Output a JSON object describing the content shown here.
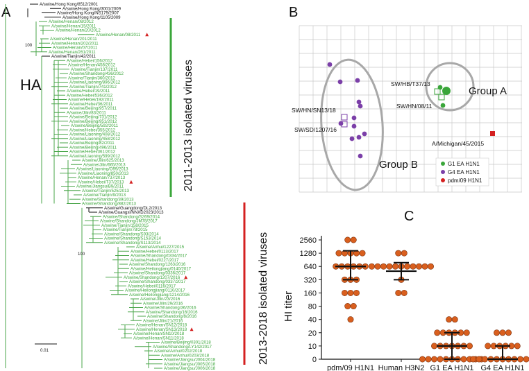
{
  "panels": {
    "a": "A",
    "b": "B",
    "c": "C"
  },
  "colors": {
    "green": "#3aa63a",
    "black": "#111111",
    "purple": "#7b3fa8",
    "red": "#d42020",
    "orange": "#d95f1e",
    "grid": "#c8c8c8",
    "ellipse": "#a8a8a8"
  },
  "tree": {
    "title": "HA",
    "groups": {
      "g2011": "2011-2013 isolated viruses",
      "g2013": "2013-2018 isolated viruses"
    },
    "bootstrap": [
      "100",
      "100"
    ],
    "scale": "0.01",
    "leaves": [
      {
        "name": "A/swine/Hong Kong/8512/2001",
        "c": "k"
      },
      {
        "name": "A/swine/Hong Kong/3001/2009",
        "c": "k"
      },
      {
        "name": "A/swine/Hong Kong/NS179/2007",
        "c": "k"
      },
      {
        "name": "A/swine/Hong Kong/1105/2009",
        "c": "k"
      },
      {
        "name": "A/swine/Henan/08/2012",
        "c": "g"
      },
      {
        "name": "A/swine/Henan/15/2011",
        "c": "g"
      },
      {
        "name": "A/swine/Henan/20/2012",
        "c": "g"
      },
      {
        "name": "A/swine/Henan/08/2011",
        "c": "g",
        "mark": true
      },
      {
        "name": "A/swine/Henan/201/2011",
        "c": "g"
      },
      {
        "name": "A/swine/Henan/202/2011",
        "c": "g"
      },
      {
        "name": "A/swine/Henan/07/2011",
        "c": "g"
      },
      {
        "name": "A/swine/Henan/261/2011",
        "c": "g"
      },
      {
        "name": "A/swine/Tianjin/42/2011",
        "c": "k"
      },
      {
        "name": "A/swine/Hebei/156/2012",
        "c": "g"
      },
      {
        "name": "A/swine/Henan/458/2012",
        "c": "g"
      },
      {
        "name": "A/swine/Tianjin/137/2011",
        "c": "g"
      },
      {
        "name": "A/swine/Shandong/436/2012",
        "c": "g"
      },
      {
        "name": "A/swine/Tianjin/360/2012",
        "c": "g"
      },
      {
        "name": "A/swine/Liaoning/896/2012",
        "c": "g"
      },
      {
        "name": "A/swine/Tianjin/741/2012",
        "c": "g"
      },
      {
        "name": "A/swine/Hebei/19/2011",
        "c": "g"
      },
      {
        "name": "A/swine/Hebei/536/2012",
        "c": "g"
      },
      {
        "name": "A/swine/Hebei/192/2011",
        "c": "g"
      },
      {
        "name": "A/swine/Hebei/36/2011",
        "c": "g"
      },
      {
        "name": "A/swine/Beijing/957/2011",
        "c": "g"
      },
      {
        "name": "A/swine/Jilin/83/2011",
        "c": "g"
      },
      {
        "name": "A/swine/Beijing/731/2012",
        "c": "g"
      },
      {
        "name": "A/swine/Beijing/951/2012",
        "c": "g"
      },
      {
        "name": "A/swine/Beijing/592/2011",
        "c": "g"
      },
      {
        "name": "A/swine/Hebei/355/2012",
        "c": "g"
      },
      {
        "name": "A/swine/Liaoning/408/2012",
        "c": "g"
      },
      {
        "name": "A/swine/Liaoning/458/2012",
        "c": "g"
      },
      {
        "name": "A/swine/Beijing/82/2011",
        "c": "g"
      },
      {
        "name": "A/swine/Beijing/496/2011",
        "c": "g"
      },
      {
        "name": "A/swine/Hebei/361/2012",
        "c": "g"
      },
      {
        "name": "A/swine/Liaoning/599/2012",
        "c": "g"
      },
      {
        "name": "A/swine/Jilin/625/2013",
        "c": "g"
      },
      {
        "name": "A/swine/Jilin/665/2013",
        "c": "g"
      },
      {
        "name": "A/swine/Liaoning/O99/2013",
        "c": "g"
      },
      {
        "name": "A/swine/Liaoning/850/2013",
        "c": "g"
      },
      {
        "name": "A/swine/Henan/737/2013",
        "c": "g"
      },
      {
        "name": "A/swine/Hebei/T37/2013",
        "c": "g",
        "mark": true
      },
      {
        "name": "A/swine/Jiangsu/B9/2011",
        "c": "g"
      },
      {
        "name": "A/swine/Tianjin/525/2013",
        "c": "g"
      },
      {
        "name": "A/swine/Tianjin/9/2013",
        "c": "g"
      },
      {
        "name": "A/swine/Shandong/39/2013",
        "c": "g"
      },
      {
        "name": "A/swine/Shandong/882/2013",
        "c": "g"
      },
      {
        "name": "A/swine/Guangdong/DL2/2013",
        "c": "k"
      },
      {
        "name": "A/swine/Guangxi/NNXD2023/2013",
        "c": "k"
      },
      {
        "name": "A/swine/Shandong/S269/2014",
        "c": "g"
      },
      {
        "name": "A/swine/Shandong/JM78/2017",
        "c": "g"
      },
      {
        "name": "A/swine/Tianjin/158/2015",
        "c": "g"
      },
      {
        "name": "A/swine/Tianjin/78/2015",
        "c": "g"
      },
      {
        "name": "A/swine/Shandong/S93/2014",
        "c": "g"
      },
      {
        "name": "A/swine/Shandong/S153/2014",
        "c": "g"
      },
      {
        "name": "A/swine/Shandong/S113/2014",
        "c": "g"
      },
      {
        "name": "A/swine/Anhui/1227/2015",
        "c": "g"
      },
      {
        "name": "A/swine/Hebei/0113/2017",
        "c": "g"
      },
      {
        "name": "A/swine/Shandong/0334/2017",
        "c": "g"
      },
      {
        "name": "A/swine/Hebei/0227/2017",
        "c": "g"
      },
      {
        "name": "A/swine/Shandong/1263/2016",
        "c": "g"
      },
      {
        "name": "A/swine/Heilongjiang/0140/2017",
        "c": "g"
      },
      {
        "name": "A/swine/Shandong/0336/2017",
        "c": "g"
      },
      {
        "name": "A/swine/Shandong/1207/2016",
        "c": "g",
        "mark": true
      },
      {
        "name": "A/swine/Shandong/0337/2017",
        "c": "g"
      },
      {
        "name": "A/swine/Hebei/0116/2017",
        "c": "g"
      },
      {
        "name": "A/swine/Heilongjiang/0110/2017",
        "c": "g"
      },
      {
        "name": "A/swine/Heilongjiang/1214/2016",
        "c": "g"
      },
      {
        "name": "A/swine/Jilin/23/2016",
        "c": "g"
      },
      {
        "name": "A/swine/Jilin/29/2016",
        "c": "g"
      },
      {
        "name": "A/swine/Shandong/36/2016",
        "c": "g"
      },
      {
        "name": "A/swine/Shandong/16/2016",
        "c": "g"
      },
      {
        "name": "A/swine/Shandong/8/2016",
        "c": "g"
      },
      {
        "name": "A/swine/Jilin/21/2016",
        "c": "g"
      },
      {
        "name": "A/swine/Henan/SN12/2018",
        "c": "g"
      },
      {
        "name": "A/swine/Henan/SN13/2018",
        "c": "g",
        "mark": true
      },
      {
        "name": "A/swine/Henan/SN10/2018",
        "c": "g"
      },
      {
        "name": "A/swine/Henan/SN11/2018",
        "c": "g"
      },
      {
        "name": "A/swine/Beijing/0301/2018",
        "c": "g"
      },
      {
        "name": "A/swine/Shandong/LY142/2017",
        "c": "g"
      },
      {
        "name": "A/swine/Anhui/0202/2018",
        "c": "g"
      },
      {
        "name": "A/swine/Anhui/0203/2018",
        "c": "g"
      },
      {
        "name": "A/swine/Jiangsu/J004/2018",
        "c": "g"
      },
      {
        "name": "A/swine/Jiangsu/J005/2018",
        "c": "g"
      },
      {
        "name": "A/swine/Jiangsu/J006/2018",
        "c": "g"
      }
    ]
  },
  "antigenic_map": {
    "labels": {
      "hb": "SW/HB/T37/13",
      "hn": "SW/HN/08/11",
      "sn13": "SW/HN/SN13/18",
      "sd": "SW/SD/1207/16",
      "mi": "A/Michigan/45/2015",
      "groupA": "Group A",
      "groupB": "Group B"
    },
    "legend": [
      "G1 EA H1N1",
      "G4 EA H1N1",
      "pdm/09 H1N1"
    ]
  },
  "chart_data": {
    "type": "scatter",
    "title": "",
    "xlabel": "",
    "ylabel": "HI titer",
    "y_scale": "log2",
    "y_ticks": [
      "2560",
      "1280",
      "640",
      "320",
      "160",
      "80",
      "40",
      "20",
      "10",
      "0"
    ],
    "categories": [
      "pdm/09 H1N1",
      "Human H3N2",
      "G1 EA H1N1",
      "G4 EA H1N1"
    ],
    "series": [
      {
        "values": [
          2560,
          2560,
          1280,
          1280,
          1280,
          1280,
          1280,
          640,
          640,
          640,
          640,
          640,
          640,
          320,
          320,
          320,
          160,
          160,
          160,
          80,
          80,
          40
        ],
        "mean": 640,
        "sd_low": 320,
        "sd_high": 1450
      },
      {
        "values": [
          1280,
          1280,
          640,
          640,
          640,
          640,
          640,
          640,
          640,
          640,
          640,
          640,
          640,
          320,
          160,
          160
        ],
        "mean": 500,
        "sd_low": 320,
        "sd_high": 780
      },
      {
        "values": [
          40,
          40,
          20,
          20,
          20,
          20,
          20,
          20,
          10,
          10,
          10,
          10,
          10,
          10,
          10,
          0,
          0,
          0,
          0,
          0,
          0,
          0,
          0,
          0,
          0,
          0
        ],
        "mean": 10,
        "sd_low": 0,
        "sd_high": 20
      },
      {
        "values": [
          20,
          20,
          20,
          10,
          10,
          10,
          10,
          10,
          10,
          0,
          0,
          0,
          0,
          0,
          0,
          0,
          0,
          0,
          0,
          0
        ],
        "mean": 5,
        "sd_low": 0,
        "sd_high": 10
      }
    ]
  }
}
